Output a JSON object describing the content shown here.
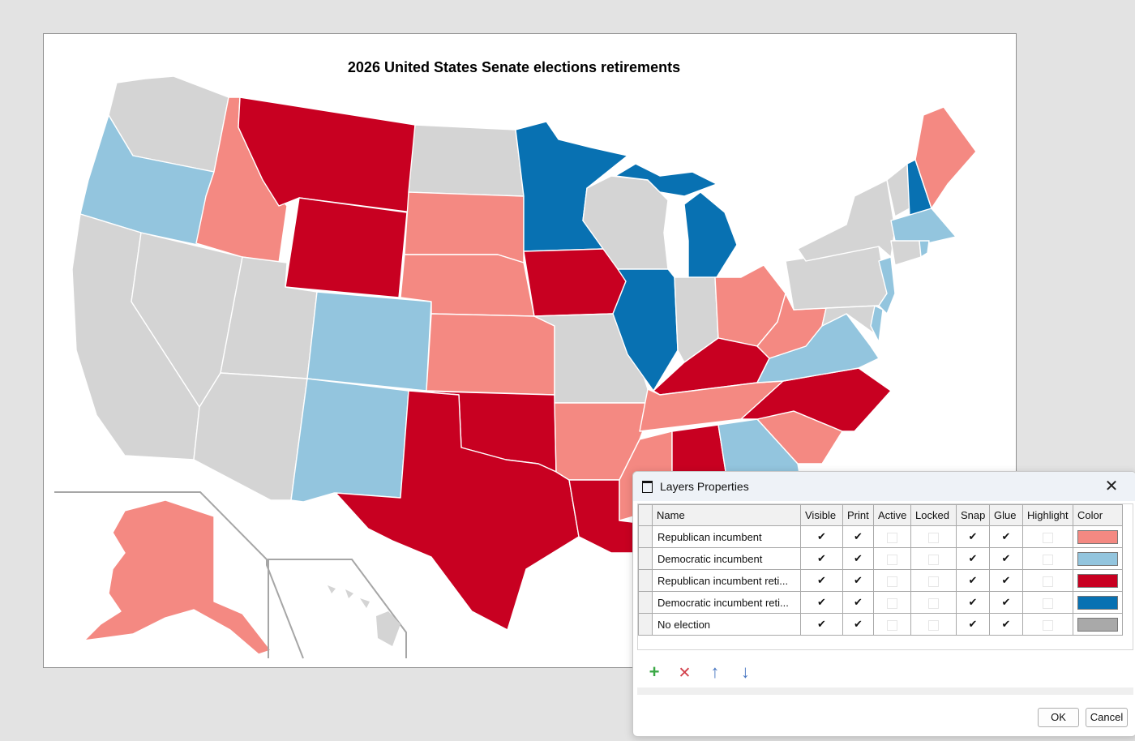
{
  "map": {
    "title": "2026 United States Senate elections retirements"
  },
  "colors": {
    "rep_incumbent": "#f48982",
    "dem_incumbent": "#93c5de",
    "rep_retiring": "#c80021",
    "dem_retiring": "#0871b2",
    "no_election": "#d4d4d4",
    "inset_border": "#a6a6a6"
  },
  "dialog": {
    "title": "Layers Properties",
    "columns": [
      "Name",
      "Visible",
      "Print",
      "Active",
      "Locked",
      "Snap",
      "Glue",
      "Highlight",
      "Color"
    ],
    "rows": [
      {
        "name": "Republican incumbent",
        "color": "#f48982"
      },
      {
        "name": "Democratic incumbent",
        "color": "#93c5de"
      },
      {
        "name": "Republican incumbent reti...",
        "color": "#c80021"
      },
      {
        "name": "Democratic incumbent reti...",
        "color": "#0871b2"
      },
      {
        "name": "No election",
        "color": "#a9a9a9"
      }
    ],
    "check_glyph": "✔",
    "toolbar": {
      "add": "+",
      "remove": "✕",
      "up": "↑",
      "down": "↓"
    },
    "ok_label": "OK",
    "cancel_label": "Cancel",
    "close_glyph": "✕"
  }
}
